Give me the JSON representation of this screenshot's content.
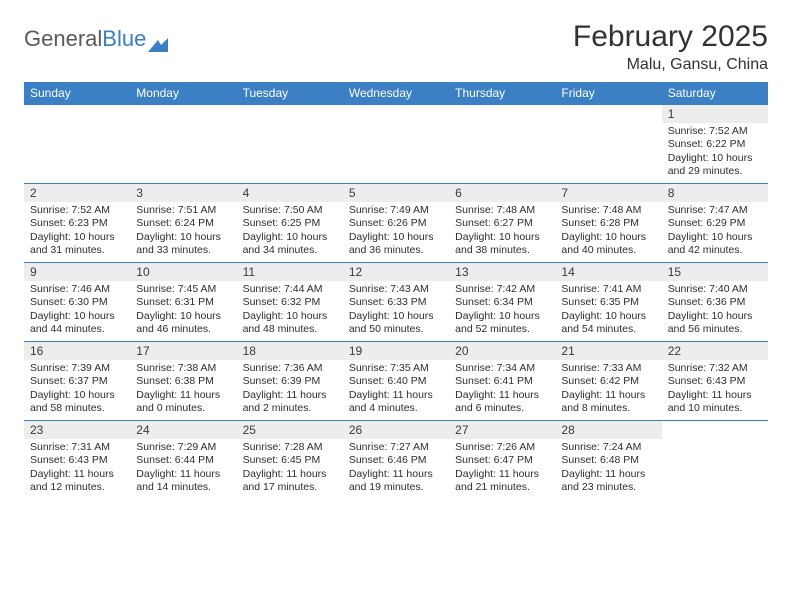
{
  "brand": {
    "part1": "General",
    "part2": "Blue"
  },
  "title": "February 2025",
  "subtitle": "Malu, Gansu, China",
  "colors": {
    "header_bar": "#3b7fc4",
    "header_text": "#ffffff",
    "daynum_bg": "#ededed",
    "week_divider": "#3b7fc4",
    "page_bg": "#ffffff",
    "body_text": "#2e2e2e",
    "title_text": "#323232"
  },
  "layout": {
    "columns": 7,
    "rows": 5,
    "title_fontsize_pt": 22,
    "subtitle_fontsize_pt": 12,
    "dow_fontsize_pt": 9,
    "daynum_fontsize_pt": 9,
    "body_fontsize_pt": 8
  },
  "dow": [
    "Sunday",
    "Monday",
    "Tuesday",
    "Wednesday",
    "Thursday",
    "Friday",
    "Saturday"
  ],
  "weeks": [
    [
      {
        "n": "",
        "sunrise": "",
        "sunset": "",
        "daylight": ""
      },
      {
        "n": "",
        "sunrise": "",
        "sunset": "",
        "daylight": ""
      },
      {
        "n": "",
        "sunrise": "",
        "sunset": "",
        "daylight": ""
      },
      {
        "n": "",
        "sunrise": "",
        "sunset": "",
        "daylight": ""
      },
      {
        "n": "",
        "sunrise": "",
        "sunset": "",
        "daylight": ""
      },
      {
        "n": "",
        "sunrise": "",
        "sunset": "",
        "daylight": ""
      },
      {
        "n": "1",
        "sunrise": "Sunrise: 7:52 AM",
        "sunset": "Sunset: 6:22 PM",
        "daylight": "Daylight: 10 hours and 29 minutes."
      }
    ],
    [
      {
        "n": "2",
        "sunrise": "Sunrise: 7:52 AM",
        "sunset": "Sunset: 6:23 PM",
        "daylight": "Daylight: 10 hours and 31 minutes."
      },
      {
        "n": "3",
        "sunrise": "Sunrise: 7:51 AM",
        "sunset": "Sunset: 6:24 PM",
        "daylight": "Daylight: 10 hours and 33 minutes."
      },
      {
        "n": "4",
        "sunrise": "Sunrise: 7:50 AM",
        "sunset": "Sunset: 6:25 PM",
        "daylight": "Daylight: 10 hours and 34 minutes."
      },
      {
        "n": "5",
        "sunrise": "Sunrise: 7:49 AM",
        "sunset": "Sunset: 6:26 PM",
        "daylight": "Daylight: 10 hours and 36 minutes."
      },
      {
        "n": "6",
        "sunrise": "Sunrise: 7:48 AM",
        "sunset": "Sunset: 6:27 PM",
        "daylight": "Daylight: 10 hours and 38 minutes."
      },
      {
        "n": "7",
        "sunrise": "Sunrise: 7:48 AM",
        "sunset": "Sunset: 6:28 PM",
        "daylight": "Daylight: 10 hours and 40 minutes."
      },
      {
        "n": "8",
        "sunrise": "Sunrise: 7:47 AM",
        "sunset": "Sunset: 6:29 PM",
        "daylight": "Daylight: 10 hours and 42 minutes."
      }
    ],
    [
      {
        "n": "9",
        "sunrise": "Sunrise: 7:46 AM",
        "sunset": "Sunset: 6:30 PM",
        "daylight": "Daylight: 10 hours and 44 minutes."
      },
      {
        "n": "10",
        "sunrise": "Sunrise: 7:45 AM",
        "sunset": "Sunset: 6:31 PM",
        "daylight": "Daylight: 10 hours and 46 minutes."
      },
      {
        "n": "11",
        "sunrise": "Sunrise: 7:44 AM",
        "sunset": "Sunset: 6:32 PM",
        "daylight": "Daylight: 10 hours and 48 minutes."
      },
      {
        "n": "12",
        "sunrise": "Sunrise: 7:43 AM",
        "sunset": "Sunset: 6:33 PM",
        "daylight": "Daylight: 10 hours and 50 minutes."
      },
      {
        "n": "13",
        "sunrise": "Sunrise: 7:42 AM",
        "sunset": "Sunset: 6:34 PM",
        "daylight": "Daylight: 10 hours and 52 minutes."
      },
      {
        "n": "14",
        "sunrise": "Sunrise: 7:41 AM",
        "sunset": "Sunset: 6:35 PM",
        "daylight": "Daylight: 10 hours and 54 minutes."
      },
      {
        "n": "15",
        "sunrise": "Sunrise: 7:40 AM",
        "sunset": "Sunset: 6:36 PM",
        "daylight": "Daylight: 10 hours and 56 minutes."
      }
    ],
    [
      {
        "n": "16",
        "sunrise": "Sunrise: 7:39 AM",
        "sunset": "Sunset: 6:37 PM",
        "daylight": "Daylight: 10 hours and 58 minutes."
      },
      {
        "n": "17",
        "sunrise": "Sunrise: 7:38 AM",
        "sunset": "Sunset: 6:38 PM",
        "daylight": "Daylight: 11 hours and 0 minutes."
      },
      {
        "n": "18",
        "sunrise": "Sunrise: 7:36 AM",
        "sunset": "Sunset: 6:39 PM",
        "daylight": "Daylight: 11 hours and 2 minutes."
      },
      {
        "n": "19",
        "sunrise": "Sunrise: 7:35 AM",
        "sunset": "Sunset: 6:40 PM",
        "daylight": "Daylight: 11 hours and 4 minutes."
      },
      {
        "n": "20",
        "sunrise": "Sunrise: 7:34 AM",
        "sunset": "Sunset: 6:41 PM",
        "daylight": "Daylight: 11 hours and 6 minutes."
      },
      {
        "n": "21",
        "sunrise": "Sunrise: 7:33 AM",
        "sunset": "Sunset: 6:42 PM",
        "daylight": "Daylight: 11 hours and 8 minutes."
      },
      {
        "n": "22",
        "sunrise": "Sunrise: 7:32 AM",
        "sunset": "Sunset: 6:43 PM",
        "daylight": "Daylight: 11 hours and 10 minutes."
      }
    ],
    [
      {
        "n": "23",
        "sunrise": "Sunrise: 7:31 AM",
        "sunset": "Sunset: 6:43 PM",
        "daylight": "Daylight: 11 hours and 12 minutes."
      },
      {
        "n": "24",
        "sunrise": "Sunrise: 7:29 AM",
        "sunset": "Sunset: 6:44 PM",
        "daylight": "Daylight: 11 hours and 14 minutes."
      },
      {
        "n": "25",
        "sunrise": "Sunrise: 7:28 AM",
        "sunset": "Sunset: 6:45 PM",
        "daylight": "Daylight: 11 hours and 17 minutes."
      },
      {
        "n": "26",
        "sunrise": "Sunrise: 7:27 AM",
        "sunset": "Sunset: 6:46 PM",
        "daylight": "Daylight: 11 hours and 19 minutes."
      },
      {
        "n": "27",
        "sunrise": "Sunrise: 7:26 AM",
        "sunset": "Sunset: 6:47 PM",
        "daylight": "Daylight: 11 hours and 21 minutes."
      },
      {
        "n": "28",
        "sunrise": "Sunrise: 7:24 AM",
        "sunset": "Sunset: 6:48 PM",
        "daylight": "Daylight: 11 hours and 23 minutes."
      },
      {
        "n": "",
        "sunrise": "",
        "sunset": "",
        "daylight": ""
      }
    ]
  ]
}
